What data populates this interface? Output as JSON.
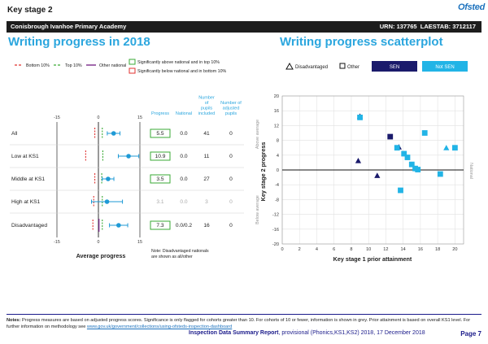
{
  "header": {
    "stage": "Key stage 2",
    "logo": "Ofsted",
    "school_name": "Conisbrough Ivanhoe Primary Academy",
    "urn": "URN: 137765",
    "laestab": "LAESTAB: 3712117"
  },
  "titles": {
    "left": "Writing progress in 2018",
    "right": "Writing progress scatterplot"
  },
  "legend_left": {
    "bottom10": "Bottom 10%",
    "top10": "Top 10%",
    "other_national": "Other national",
    "sig_above": "Significantly above national and in top 10%",
    "sig_below": "Significantly below national and in bottom 10%"
  },
  "legend_right": {
    "disadvantaged": "Disadvantaged",
    "other": "Other",
    "sen": "SEN",
    "not_sen": "Not SEN"
  },
  "table": {
    "headers": [
      "Progress",
      "National",
      "Number of pupils included",
      "Number of adjusted pupils"
    ],
    "rows": [
      {
        "label": "All",
        "progress": "5.5",
        "national": "0.0",
        "pupils": "41",
        "adjusted": "0",
        "muted": false
      },
      {
        "label": "Low at KS1",
        "progress": "10.9",
        "national": "0.0",
        "pupils": "11",
        "adjusted": "0",
        "muted": false
      },
      {
        "label": "Middle at KS1",
        "progress": "3.5",
        "national": "0.0",
        "pupils": "27",
        "adjusted": "0",
        "muted": false
      },
      {
        "label": "High at KS1",
        "progress": "3.1",
        "national": "0.0",
        "pupils": "3",
        "adjusted": "0",
        "muted": true
      },
      {
        "label": "Disadvantaged",
        "progress": "7.3",
        "national": "0.0/0.2",
        "pupils": "16",
        "adjusted": "0",
        "muted": false
      }
    ],
    "note": "Note: Disadvantaged nationals are shown as all/other"
  },
  "chart_data": [
    {
      "type": "scatter",
      "title": "",
      "xlabel": "Average progress",
      "xlim": [
        -15,
        15
      ],
      "x_ticks": [
        "-15",
        "0",
        "15"
      ],
      "categories": [
        "All",
        "Low at KS1",
        "Middle at KS1",
        "High at KS1",
        "Disadvantaged"
      ],
      "series": [
        {
          "name": "Progress",
          "values": [
            5.5,
            10.9,
            3.5,
            3.1,
            7.3
          ],
          "ci_low": [
            3.2,
            7.2,
            1.4,
            -2.5,
            4.0
          ],
          "ci_high": [
            7.8,
            14.6,
            5.6,
            8.7,
            10.6
          ]
        },
        {
          "name": "Bottom 10%",
          "values": [
            -1.3,
            -4.6,
            -1.3,
            -1.7,
            -2.0
          ]
        },
        {
          "name": "Top 10%",
          "values": [
            1.4,
            1.6,
            1.2,
            1.4,
            1.4
          ]
        },
        {
          "name": "Other national",
          "values": [
            null,
            null,
            null,
            null,
            0.2
          ]
        }
      ]
    },
    {
      "type": "scatter",
      "title": "",
      "xlabel": "Key stage 1 prior attainment",
      "ylabel": "Key stage 2 progress",
      "above_label": "Above average",
      "below_label": "Below average",
      "national_label": "National",
      "xlim": [
        0,
        21
      ],
      "ylim": [
        -20,
        20
      ],
      "x_ticks": [
        0,
        2,
        4,
        6,
        8,
        10,
        12,
        14,
        16,
        18,
        20
      ],
      "y_ticks": [
        20,
        16,
        12,
        8,
        4,
        0,
        -4,
        -8,
        -12,
        -16,
        -20
      ],
      "points": [
        {
          "x": 9.0,
          "y": 14.5,
          "shape": "triangle",
          "sen": true
        },
        {
          "x": 9.0,
          "y": 14.2,
          "shape": "square",
          "sen": false
        },
        {
          "x": 8.8,
          "y": 2.5,
          "shape": "triangle",
          "sen": true
        },
        {
          "x": 11.0,
          "y": -1.5,
          "shape": "triangle",
          "sen": true
        },
        {
          "x": 12.5,
          "y": 9.0,
          "shape": "square",
          "sen": true
        },
        {
          "x": 13.5,
          "y": 6.2,
          "shape": "triangle",
          "sen": true
        },
        {
          "x": 13.3,
          "y": 6.0,
          "shape": "square",
          "sen": false
        },
        {
          "x": 14.1,
          "y": 4.4,
          "shape": "square",
          "sen": false
        },
        {
          "x": 14.5,
          "y": 3.4,
          "shape": "square",
          "sen": false
        },
        {
          "x": 15.0,
          "y": 1.5,
          "shape": "square",
          "sen": false
        },
        {
          "x": 15.4,
          "y": 0.4,
          "shape": "square",
          "sen": false
        },
        {
          "x": 15.7,
          "y": 0.1,
          "shape": "square",
          "sen": false
        },
        {
          "x": 16.5,
          "y": 10.0,
          "shape": "square",
          "sen": false
        },
        {
          "x": 13.7,
          "y": -5.5,
          "shape": "square",
          "sen": false
        },
        {
          "x": 18.3,
          "y": -1.1,
          "shape": "square",
          "sen": false
        },
        {
          "x": 19.0,
          "y": 6.0,
          "shape": "triangle",
          "sen": false
        },
        {
          "x": 20.0,
          "y": 6.0,
          "shape": "square",
          "sen": false
        }
      ]
    }
  ],
  "colors": {
    "title_blue": "#2ba6de",
    "navy": "#1a1a6b",
    "cyan": "#22b4e6",
    "green": "#3aaa35",
    "red": "#e0312f",
    "purple": "#7a2a8a",
    "point_blue": "#1e9ad6"
  },
  "footer": {
    "notes_label": "Notes:",
    "notes_text": "Progress measures are based on adjusted progress scores. Significance is only flagged for cohorts greater than 10. For cohorts of 10 or fewer, information is shown in grey. Prior attainment is based on overall KS1 level. For further information on methodology see",
    "link": "www.gov.uk/government/collections/using-ofsteds-inspection-dashboard",
    "report_title": "Inspection Data Summary Report",
    "report_rest": ", provisional (Phonics,KS1,KS2) 2018, 17 December 2018",
    "page": "Page 7"
  }
}
